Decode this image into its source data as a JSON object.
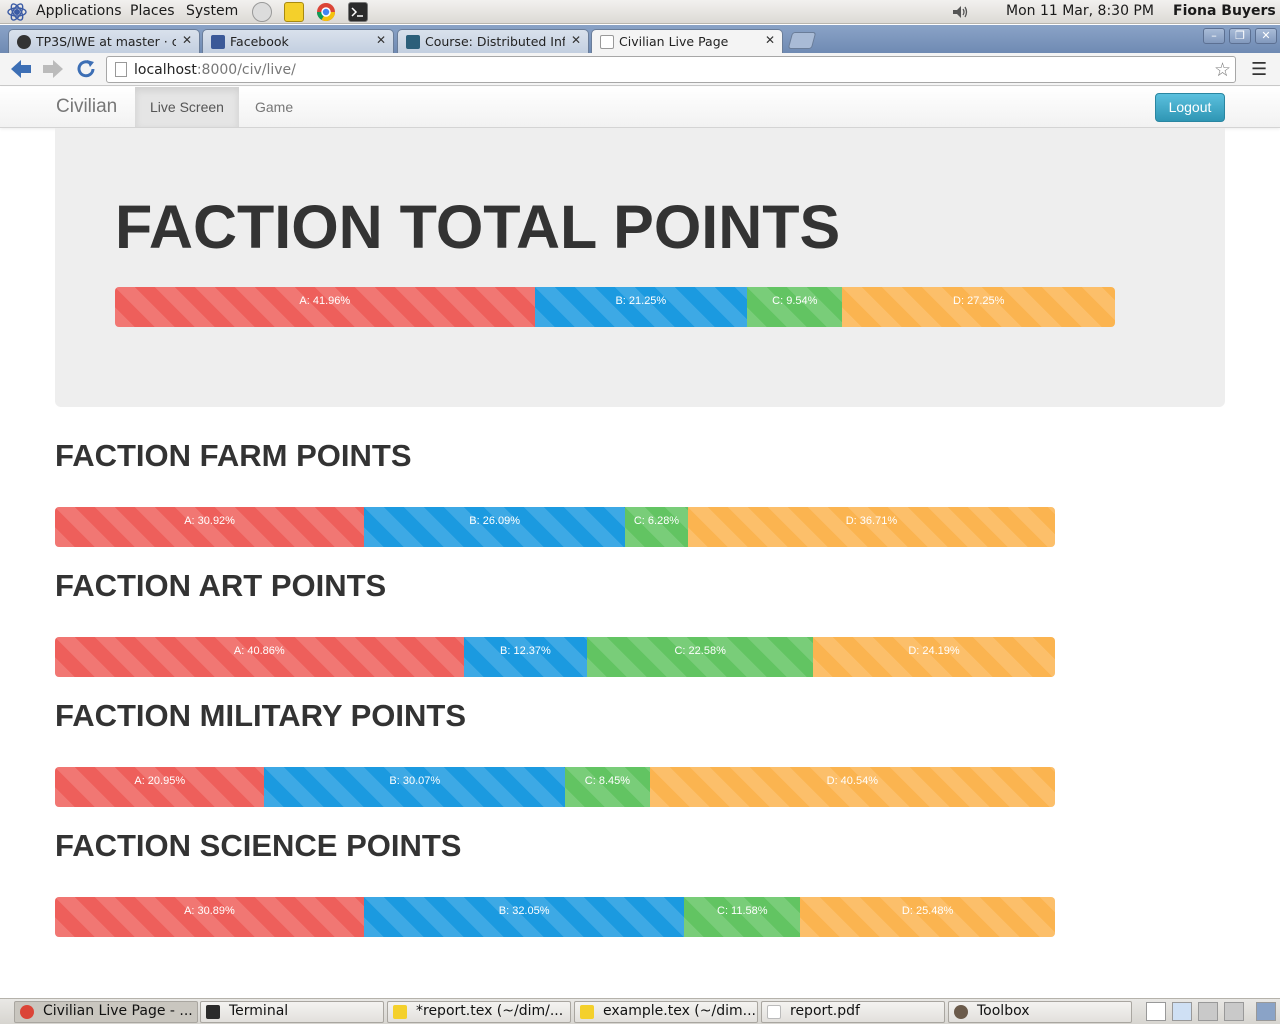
{
  "gnome_panel": {
    "menus": [
      "Applications",
      "Places",
      "System"
    ],
    "datetime": "Mon 11 Mar,  8:30 PM",
    "user": "Fiona Buyers"
  },
  "browser": {
    "tabs": [
      {
        "title": "TP3S/IWE at master · c",
        "icon": "github-icon",
        "active": false
      },
      {
        "title": "Facebook",
        "icon": "facebook-icon",
        "active": false
      },
      {
        "title": "Course: Distributed Info",
        "icon": "moodle-icon",
        "active": false
      },
      {
        "title": "Civilian Live Page",
        "icon": "page-icon",
        "active": true
      }
    ],
    "url_host": "localhost",
    "url_rest": ":8000/civ/live/"
  },
  "site": {
    "brand": "Civilian",
    "nav": [
      "Live Screen",
      "Game"
    ],
    "active_nav": "Live Screen",
    "logout": "Logout"
  },
  "colors": {
    "A": "#ee5f5b",
    "B": "#1b9ae0",
    "C": "#62c462",
    "D": "#fbb450"
  },
  "hero": {
    "title": "FACTION TOTAL POINTS",
    "segments": [
      {
        "label": "A: 41.96%",
        "faction": "A",
        "percent": 41.96
      },
      {
        "label": "B: 21.25%",
        "faction": "B",
        "percent": 21.25
      },
      {
        "label": "C: 9.54%",
        "faction": "C",
        "percent": 9.54
      },
      {
        "label": "D: 27.25%",
        "faction": "D",
        "percent": 27.25
      }
    ]
  },
  "sections": [
    {
      "title": "FACTION FARM POINTS",
      "segments": [
        {
          "label": "A: 30.92%",
          "faction": "A",
          "percent": 30.92
        },
        {
          "label": "B: 26.09%",
          "faction": "B",
          "percent": 26.09
        },
        {
          "label": "C: 6.28%",
          "faction": "C",
          "percent": 6.28
        },
        {
          "label": "D: 36.71%",
          "faction": "D",
          "percent": 36.71
        }
      ]
    },
    {
      "title": "FACTION ART POINTS",
      "segments": [
        {
          "label": "A: 40.86%",
          "faction": "A",
          "percent": 40.86
        },
        {
          "label": "B: 12.37%",
          "faction": "B",
          "percent": 12.37
        },
        {
          "label": "C: 22.58%",
          "faction": "C",
          "percent": 22.58
        },
        {
          "label": "D: 24.19%",
          "faction": "D",
          "percent": 24.19
        }
      ]
    },
    {
      "title": "FACTION MILITARY POINTS",
      "segments": [
        {
          "label": "A: 20.95%",
          "faction": "A",
          "percent": 20.95
        },
        {
          "label": "B: 30.07%",
          "faction": "B",
          "percent": 30.07
        },
        {
          "label": "C: 8.45%",
          "faction": "C",
          "percent": 8.45
        },
        {
          "label": "D: 40.54%",
          "faction": "D",
          "percent": 40.54
        }
      ]
    },
    {
      "title": "FACTION SCIENCE POINTS",
      "segments": [
        {
          "label": "A: 30.89%",
          "faction": "A",
          "percent": 30.89
        },
        {
          "label": "B: 32.05%",
          "faction": "B",
          "percent": 32.05
        },
        {
          "label": "C: 11.58%",
          "faction": "C",
          "percent": 11.58
        },
        {
          "label": "D: 25.48%",
          "faction": "D",
          "percent": 25.48
        }
      ]
    }
  ],
  "taskbar": [
    {
      "label": "Civilian Live Page - ...",
      "icon": "chrome-icon",
      "active": true
    },
    {
      "label": "Terminal",
      "icon": "terminal-icon",
      "active": false
    },
    {
      "label": "*report.tex (~/dim/...",
      "icon": "text-editor-icon",
      "active": false
    },
    {
      "label": "example.tex (~/dim...",
      "icon": "text-editor-icon",
      "active": false
    },
    {
      "label": "report.pdf",
      "icon": "pdf-icon",
      "active": false
    },
    {
      "label": "Toolbox",
      "icon": "gimp-icon",
      "active": false
    }
  ]
}
